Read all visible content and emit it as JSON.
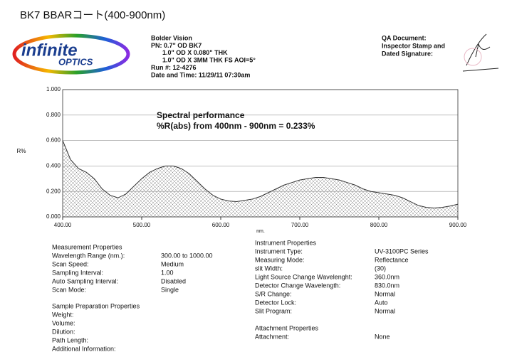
{
  "title": "BK7 BBARコート(400-900nm)",
  "logo": {
    "word1": "infinite",
    "word2": "OPTICS"
  },
  "header": {
    "lines": [
      "Bolder Vision",
      "PN: 0.7\" OD BK7",
      "1.0\" OD X 0.080\" THK",
      "1.0\" OD X 3MM THK FS   AOI=5°",
      "Run #: 12-4276",
      "Date and Time: 11/29/11 07:30am"
    ]
  },
  "qa": {
    "lines": [
      "QA Document:",
      "Inspector Stamp and",
      "Dated Signature:"
    ]
  },
  "chart_data": {
    "type": "area",
    "x": [
      400,
      410,
      420,
      430,
      440,
      450,
      460,
      470,
      480,
      490,
      500,
      510,
      520,
      530,
      540,
      550,
      560,
      570,
      580,
      590,
      600,
      610,
      620,
      630,
      640,
      650,
      660,
      670,
      680,
      690,
      700,
      710,
      720,
      730,
      740,
      750,
      760,
      770,
      780,
      790,
      800,
      810,
      820,
      830,
      840,
      850,
      860,
      870,
      880,
      890,
      900
    ],
    "values": [
      0.6,
      0.45,
      0.38,
      0.35,
      0.3,
      0.22,
      0.17,
      0.15,
      0.18,
      0.24,
      0.3,
      0.35,
      0.38,
      0.4,
      0.4,
      0.38,
      0.34,
      0.28,
      0.22,
      0.17,
      0.14,
      0.125,
      0.12,
      0.13,
      0.14,
      0.16,
      0.19,
      0.22,
      0.25,
      0.27,
      0.29,
      0.3,
      0.31,
      0.31,
      0.3,
      0.29,
      0.27,
      0.25,
      0.22,
      0.2,
      0.19,
      0.18,
      0.17,
      0.15,
      0.12,
      0.09,
      0.075,
      0.07,
      0.075,
      0.085,
      0.1
    ],
    "xlim": [
      400,
      900
    ],
    "ylim": [
      0,
      1
    ],
    "xticks": [
      {
        "value": 400,
        "label": "400.00"
      },
      {
        "value": 500,
        "label": "500.00"
      },
      {
        "value": 600,
        "label": "600.00"
      },
      {
        "value": 700,
        "label": "700.00"
      },
      {
        "value": 800,
        "label": "800.00"
      },
      {
        "value": 900,
        "label": "900.00"
      }
    ],
    "yticks": [
      {
        "value": 0,
        "label": "0.000"
      },
      {
        "value": 0.2,
        "label": "0.200"
      },
      {
        "value": 0.4,
        "label": "0.400"
      },
      {
        "value": 0.6,
        "label": "0.600"
      },
      {
        "value": 0.8,
        "label": "0.800"
      },
      {
        "value": 1,
        "label": "1.000"
      }
    ],
    "y_label": "R%",
    "x_label": "nm.",
    "annotations": [
      "Spectral performance",
      "%R(abs) from 400nm - 900nm = 0.233%"
    ],
    "color": "#333333",
    "grid": true
  },
  "measurement": {
    "title": "Measurement Properties",
    "rows": [
      [
        "Wavelength Range (nm.):",
        "300.00 to 1000.00"
      ],
      [
        "Scan Speed:",
        "Medium"
      ],
      [
        "Sampling Interval:",
        "1.00"
      ],
      [
        "Auto Sampling Interval:",
        "Disabled"
      ],
      [
        "Scan Mode:",
        "Single"
      ]
    ]
  },
  "sample": {
    "title": "Sample Preparation Properties",
    "rows": [
      [
        "Weight:"
      ],
      [
        "Volume:"
      ],
      [
        "Dilution:"
      ],
      [
        "Path Length:"
      ],
      [
        "Additional Information:"
      ]
    ]
  },
  "instrument": {
    "title": "Instrument Properties",
    "rows": [
      [
        "Instrument Type:",
        "UV-3100PC Series"
      ],
      [
        "Measuring Mode:",
        "Reflectance"
      ],
      [
        "slit Width:",
        "(30)"
      ],
      [
        "Light Source Change Wavelenght:",
        "360.0nm"
      ],
      [
        "Detector Change Wavelength:",
        "830.0nm"
      ],
      [
        "S/R Change:",
        "Normal"
      ],
      [
        "Detector Lock:",
        "Auto"
      ],
      [
        "Slit Program:",
        "Normal"
      ]
    ]
  },
  "attachment": {
    "title": "Attachment Properties",
    "rows": [
      [
        "Attachment:",
        "None"
      ]
    ]
  }
}
